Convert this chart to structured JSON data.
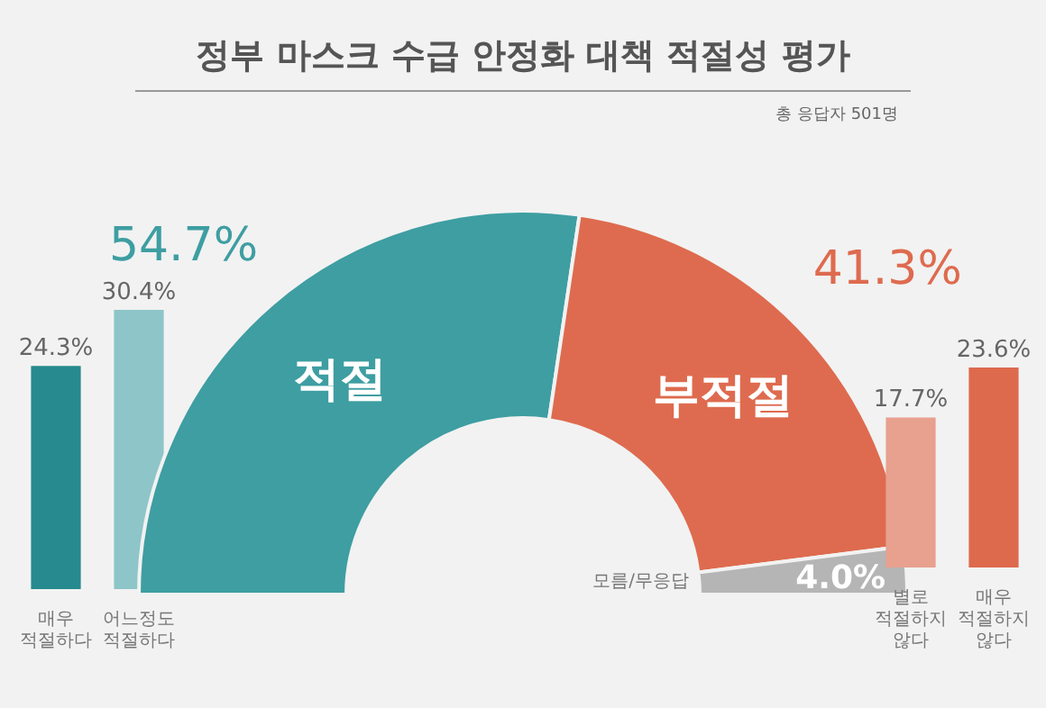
{
  "chart_data": [
    {
      "type": "bar",
      "categories": [
        "매우 적절하다",
        "어느정도 적절하다"
      ],
      "values": [
        24.3,
        30.4
      ],
      "colors": [
        "#268a8e",
        "#8ec5c9"
      ],
      "value_labels": [
        "24.3%",
        "30.4%"
      ],
      "legend": false,
      "grid": false
    },
    {
      "type": "donut",
      "title": "정부 마스크 수급 안정화 대책 적절성 평가",
      "subtitle": "총 응답자 501명",
      "categories": [
        "적절",
        "부적절",
        "모름/무응답"
      ],
      "values": [
        54.7,
        41.3,
        4.0
      ],
      "colors": [
        "#3e9ea2",
        "#de6b4f",
        "#b5b5b5"
      ],
      "value_labels": [
        "54.7%",
        "41.3%",
        "4.0%"
      ],
      "legend": false
    },
    {
      "type": "bar",
      "categories": [
        "별로 적절하지 않다",
        "매우 적절하지 않다"
      ],
      "values": [
        17.7,
        23.6
      ],
      "colors": [
        "#e8a08f",
        "#dd6a4d"
      ],
      "value_labels": [
        "17.7%",
        "23.6%"
      ],
      "legend": false,
      "grid": false
    }
  ]
}
